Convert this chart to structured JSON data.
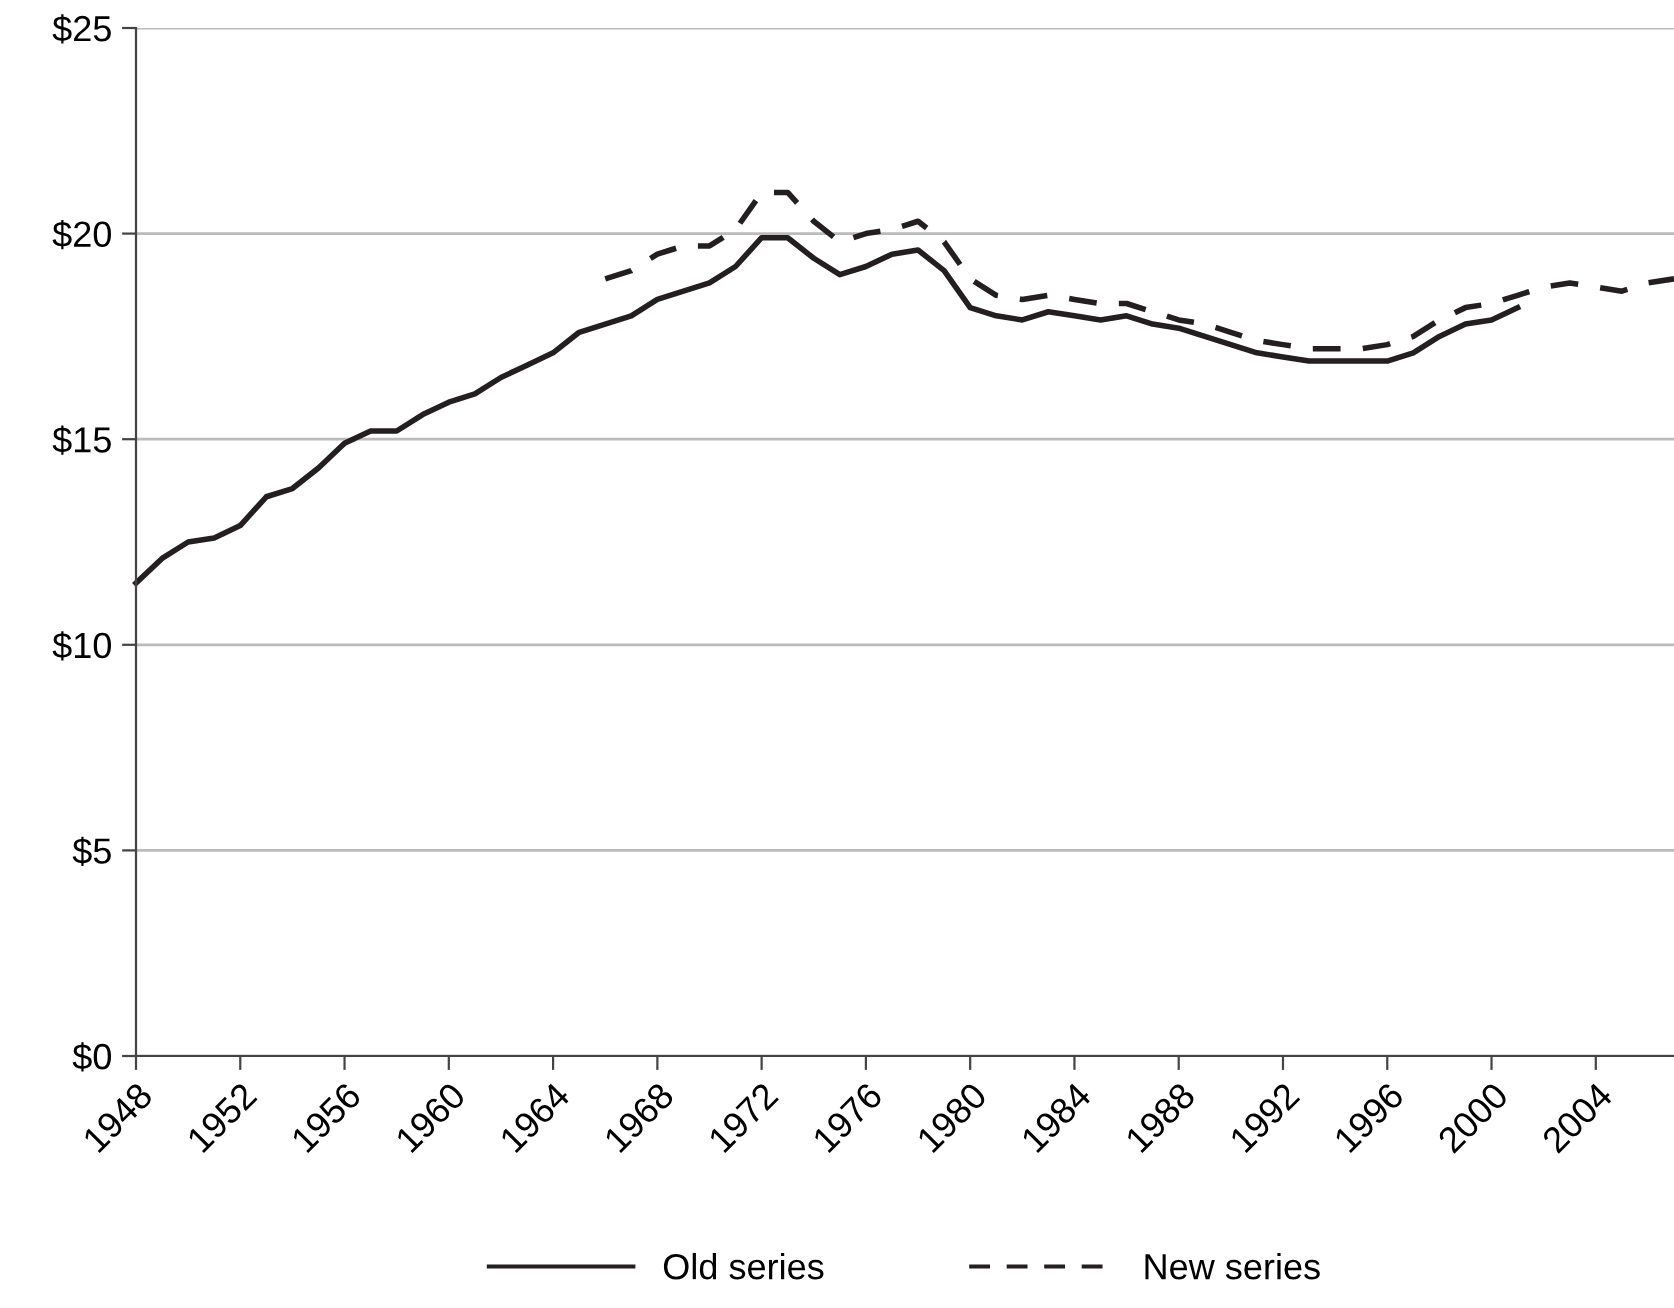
{
  "chart_data": {
    "type": "line",
    "xlim": [
      1948,
      2007
    ],
    "xticks": [
      1948,
      1952,
      1956,
      1960,
      1964,
      1968,
      1972,
      1976,
      1980,
      1984,
      1988,
      1992,
      1996,
      2000,
      2004
    ],
    "ylim": [
      0,
      25
    ],
    "yticks": [
      {
        "value": 0,
        "label": "$0"
      },
      {
        "value": 5,
        "label": "$5"
      },
      {
        "value": 10,
        "label": "$10"
      },
      {
        "value": 15,
        "label": "$15"
      },
      {
        "value": 20,
        "label": "$20"
      },
      {
        "value": 25,
        "label": "$25"
      }
    ],
    "grid": "y",
    "legend": "bottom",
    "marker": "none",
    "series": [
      {
        "name": "Old series",
        "color": "#231f20",
        "line_style": "solid",
        "x": [
          1948,
          1949,
          1950,
          1951,
          1952,
          1953,
          1954,
          1955,
          1956,
          1957,
          1958,
          1959,
          1960,
          1961,
          1962,
          1963,
          1964,
          1965,
          1966,
          1967,
          1968,
          1969,
          1970,
          1971,
          1972,
          1973,
          1974,
          1975,
          1976,
          1977,
          1978,
          1979,
          1980,
          1981,
          1982,
          1983,
          1984,
          1985,
          1986,
          1987,
          1988,
          1989,
          1990,
          1991,
          1992,
          1993,
          1994,
          1995,
          1996,
          1997,
          1998,
          1999,
          2000,
          2001
        ],
        "values": [
          11.5,
          12.1,
          12.5,
          12.6,
          12.9,
          13.6,
          13.8,
          14.3,
          14.9,
          15.2,
          15.2,
          15.6,
          15.9,
          16.1,
          16.5,
          16.8,
          17.1,
          17.6,
          17.8,
          18.0,
          18.4,
          18.6,
          18.8,
          19.2,
          19.9,
          19.9,
          19.4,
          19.0,
          19.2,
          19.5,
          19.6,
          19.1,
          18.2,
          18.0,
          17.9,
          18.1,
          18.0,
          17.9,
          18.0,
          17.8,
          17.7,
          17.5,
          17.3,
          17.1,
          17.0,
          16.9,
          16.9,
          16.9,
          16.9,
          17.1,
          17.5,
          17.8,
          17.9,
          18.2
        ]
      },
      {
        "name": "New series",
        "color": "#231f20",
        "line_style": "dashed",
        "x": [
          1966,
          1967,
          1968,
          1969,
          1970,
          1971,
          1972,
          1973,
          1974,
          1975,
          1976,
          1977,
          1978,
          1979,
          1980,
          1981,
          1982,
          1983,
          1984,
          1985,
          1986,
          1987,
          1988,
          1989,
          1990,
          1991,
          1992,
          1993,
          1994,
          1995,
          1996,
          1997,
          1998,
          1999,
          2000,
          2001,
          2002,
          2003,
          2004,
          2005,
          2006,
          2007
        ],
        "values": [
          18.9,
          19.1,
          19.5,
          19.7,
          19.7,
          20.1,
          21.0,
          21.0,
          20.3,
          19.8,
          20.0,
          20.1,
          20.3,
          19.8,
          18.9,
          18.5,
          18.4,
          18.5,
          18.4,
          18.3,
          18.3,
          18.1,
          17.9,
          17.8,
          17.6,
          17.4,
          17.3,
          17.2,
          17.2,
          17.2,
          17.3,
          17.5,
          17.9,
          18.2,
          18.3,
          18.5,
          18.7,
          18.8,
          18.7,
          18.6,
          18.8,
          18.9
        ]
      }
    ]
  }
}
